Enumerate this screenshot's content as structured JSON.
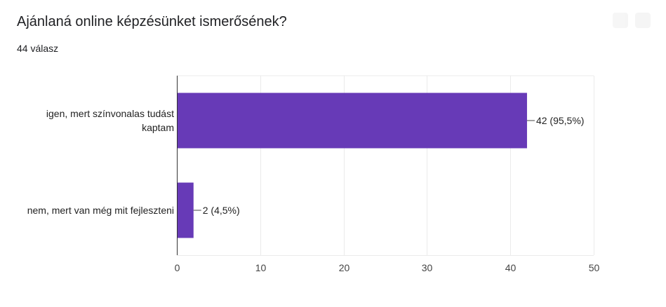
{
  "question": {
    "title": "Ajánlaná online képzésünket ismerősének?",
    "response_count": "44 válasz"
  },
  "chart_data": {
    "type": "bar",
    "orientation": "horizontal",
    "title": "Ajánlaná online képzésünket ismerősének?",
    "subtitle": "44 válasz",
    "categories": [
      "igen, mert színvonalas tudást kaptam",
      "nem, mert van még mit fejleszteni"
    ],
    "category_label_lines": [
      [
        "igen, mert színvonalas tudást",
        "kaptam"
      ],
      [
        "nem, mert van még mit fejleszteni"
      ]
    ],
    "values": [
      42,
      2
    ],
    "data_labels": [
      "42 (95,5%)",
      "2 (4,5%)"
    ],
    "xlim": [
      0,
      50
    ],
    "xticks": [
      0,
      10,
      20,
      30,
      40,
      50
    ],
    "xtick_labels": [
      "0",
      "10",
      "20",
      "30",
      "40",
      "50"
    ],
    "xlabel": "",
    "ylabel": "",
    "grid": true,
    "legend": "none",
    "bar_color": "#673ab7",
    "grid_color": "#ebebeb",
    "axis_color": "#333333"
  }
}
